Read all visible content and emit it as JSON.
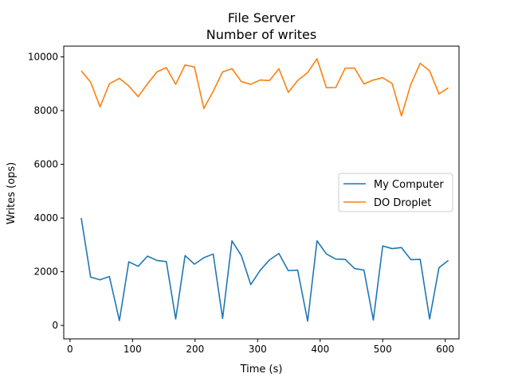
{
  "chart_data": {
    "type": "line",
    "title": "File Server",
    "subtitle": "Number of writes",
    "xlabel": "Time (s)",
    "ylabel": "Writes (ops)",
    "xlim": [
      -10,
      622
    ],
    "ylim": [
      -500,
      10400
    ],
    "xticks": [
      0,
      100,
      200,
      300,
      400,
      500,
      600
    ],
    "yticks": [
      0,
      2000,
      4000,
      6000,
      8000,
      10000
    ],
    "grid": false,
    "legend_position": "center-right",
    "x": [
      18,
      33,
      48,
      63,
      79,
      94,
      109,
      124,
      139,
      154,
      169,
      184,
      199,
      214,
      229,
      244,
      259,
      274,
      289,
      304,
      319,
      334,
      349,
      364,
      380,
      395,
      410,
      425,
      440,
      455,
      470,
      485,
      500,
      515,
      530,
      545,
      560,
      575,
      590,
      605
    ],
    "series": [
      {
        "name": "My Computer",
        "color": "#1f77b4",
        "values": [
          4000,
          1800,
          1700,
          1820,
          180,
          2370,
          2200,
          2580,
          2420,
          2380,
          240,
          2600,
          2280,
          2520,
          2660,
          260,
          3150,
          2600,
          1520,
          2050,
          2440,
          2680,
          2040,
          2060,
          160,
          3150,
          2660,
          2470,
          2460,
          2120,
          2060,
          200,
          2960,
          2860,
          2900,
          2450,
          2460,
          240,
          2150,
          2420
        ]
      },
      {
        "name": "DO Droplet",
        "color": "#ff7f0e",
        "values": [
          9480,
          9060,
          8140,
          9000,
          9200,
          8920,
          8520,
          9000,
          9440,
          9600,
          8980,
          9700,
          9620,
          8080,
          8720,
          9440,
          9560,
          9080,
          8980,
          9140,
          9120,
          9560,
          8680,
          9120,
          9420,
          9930,
          8850,
          8860,
          9580,
          9580,
          8990,
          9140,
          9220,
          9010,
          7800,
          8980,
          9760,
          9480,
          8620,
          8850
        ]
      }
    ]
  }
}
